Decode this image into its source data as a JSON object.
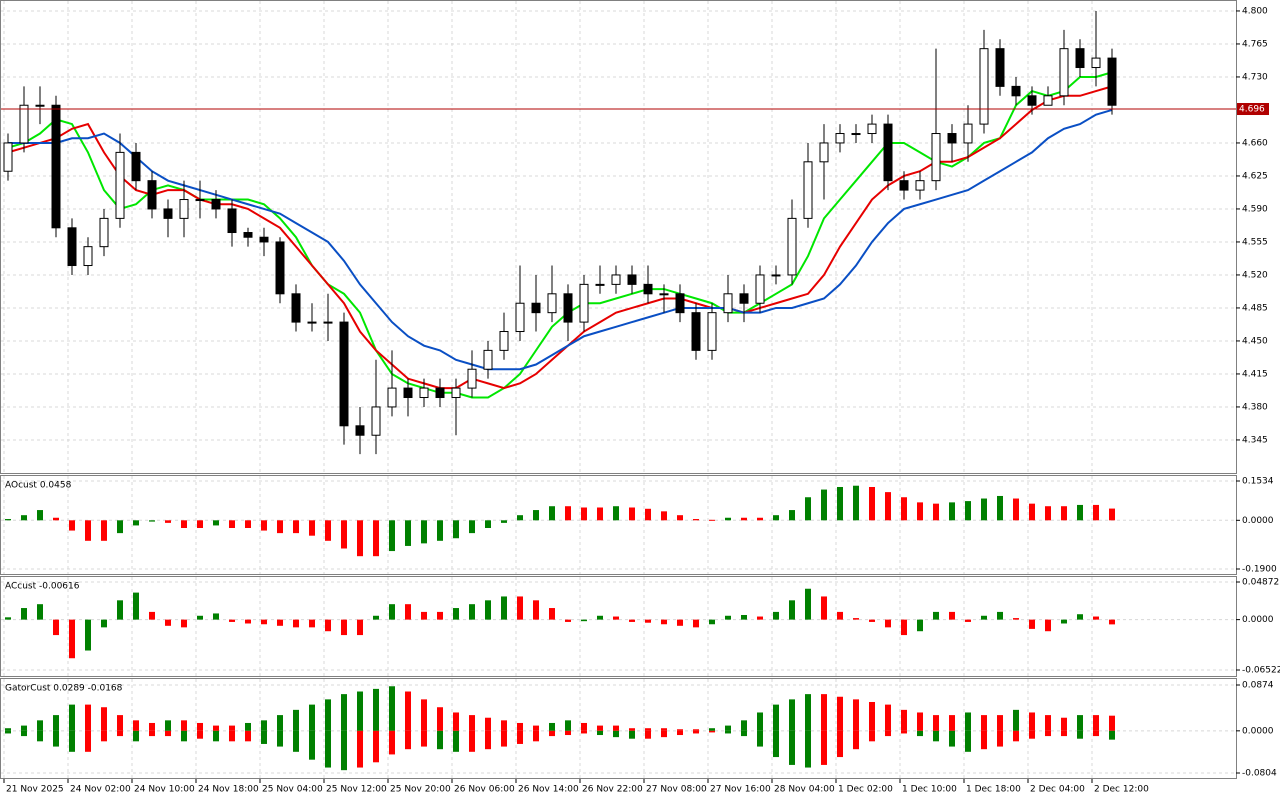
{
  "chart_data": [
    {
      "type": "candlestick",
      "categories": [
        "21 Nov 2025",
        null,
        null,
        null,
        "24 Nov 02:00",
        null,
        null,
        null,
        "24 Nov 10:00",
        null,
        null,
        null,
        "24 Nov 18:00",
        null,
        null,
        null,
        "25 Nov 04:00",
        null,
        null,
        null,
        "25 Nov 12:00",
        null,
        null,
        null,
        "25 Nov 20:00",
        null,
        null,
        null,
        "26 Nov 06:00",
        null,
        null,
        null,
        "26 Nov 14:00",
        null,
        null,
        null,
        "26 Nov 22:00",
        null,
        null,
        null,
        "27 Nov 08:00",
        null,
        null,
        null,
        "27 Nov 16:00",
        null,
        null,
        null,
        "28 Nov 04:00",
        null,
        null,
        null,
        "1 Dec 02:00",
        null,
        null,
        null,
        "1 Dec 10:00",
        null,
        null,
        null,
        "1 Dec 18:00",
        null,
        null,
        null,
        "2 Dec 04:00",
        null,
        null,
        null,
        "2 Dec 12:00",
        null
      ],
      "candles": [
        [
          4.63,
          4.67,
          4.62,
          4.66
        ],
        [
          4.66,
          4.72,
          4.65,
          4.7
        ],
        [
          4.7,
          4.72,
          4.68,
          4.7
        ],
        [
          4.7,
          4.71,
          4.56,
          4.57
        ],
        [
          4.57,
          4.58,
          4.52,
          4.53
        ],
        [
          4.53,
          4.56,
          4.52,
          4.55
        ],
        [
          4.55,
          4.59,
          4.54,
          4.58
        ],
        [
          4.58,
          4.67,
          4.57,
          4.65
        ],
        [
          4.65,
          4.66,
          4.61,
          4.62
        ],
        [
          4.62,
          4.63,
          4.58,
          4.59
        ],
        [
          4.59,
          4.6,
          4.56,
          4.58
        ],
        [
          4.58,
          4.62,
          4.56,
          4.6
        ],
        [
          4.6,
          4.62,
          4.58,
          4.6
        ],
        [
          4.6,
          4.61,
          4.58,
          4.59
        ],
        [
          4.59,
          4.6,
          4.55,
          4.565
        ],
        [
          4.565,
          4.57,
          4.55,
          4.56
        ],
        [
          4.56,
          4.57,
          4.54,
          4.555
        ],
        [
          4.555,
          4.56,
          4.49,
          4.5
        ],
        [
          4.5,
          4.51,
          4.46,
          4.47
        ],
        [
          4.47,
          4.49,
          4.46,
          4.47
        ],
        [
          4.47,
          4.5,
          4.45,
          4.47
        ],
        [
          4.47,
          4.48,
          4.34,
          4.36
        ],
        [
          4.36,
          4.38,
          4.33,
          4.35
        ],
        [
          4.35,
          4.43,
          4.33,
          4.38
        ],
        [
          4.38,
          4.44,
          4.37,
          4.4
        ],
        [
          4.4,
          4.41,
          4.37,
          4.39
        ],
        [
          4.39,
          4.41,
          4.38,
          4.4
        ],
        [
          4.4,
          4.41,
          4.38,
          4.39
        ],
        [
          4.39,
          4.41,
          4.35,
          4.4
        ],
        [
          4.4,
          4.44,
          4.39,
          4.42
        ],
        [
          4.42,
          4.45,
          4.41,
          4.44
        ],
        [
          4.44,
          4.48,
          4.43,
          4.46
        ],
        [
          4.46,
          4.53,
          4.45,
          4.49
        ],
        [
          4.49,
          4.52,
          4.46,
          4.48
        ],
        [
          4.48,
          4.53,
          4.47,
          4.5
        ],
        [
          4.5,
          4.51,
          4.45,
          4.47
        ],
        [
          4.47,
          4.52,
          4.46,
          4.51
        ],
        [
          4.51,
          4.53,
          4.5,
          4.51
        ],
        [
          4.51,
          4.53,
          4.5,
          4.52
        ],
        [
          4.52,
          4.53,
          4.5,
          4.51
        ],
        [
          4.51,
          4.53,
          4.49,
          4.5
        ],
        [
          4.5,
          4.51,
          4.48,
          4.5
        ],
        [
          4.5,
          4.51,
          4.47,
          4.48
        ],
        [
          4.48,
          4.49,
          4.43,
          4.44
        ],
        [
          4.44,
          4.49,
          4.43,
          4.48
        ],
        [
          4.48,
          4.52,
          4.47,
          4.5
        ],
        [
          4.5,
          4.51,
          4.47,
          4.49
        ],
        [
          4.49,
          4.53,
          4.48,
          4.52
        ],
        [
          4.52,
          4.53,
          4.51,
          4.52
        ],
        [
          4.52,
          4.6,
          4.51,
          4.58
        ],
        [
          4.58,
          4.66,
          4.57,
          4.64
        ],
        [
          4.64,
          4.68,
          4.6,
          4.66
        ],
        [
          4.66,
          4.68,
          4.65,
          4.67
        ],
        [
          4.67,
          4.68,
          4.66,
          4.67
        ],
        [
          4.67,
          4.69,
          4.66,
          4.68
        ],
        [
          4.68,
          4.69,
          4.61,
          4.62
        ],
        [
          4.62,
          4.63,
          4.6,
          4.61
        ],
        [
          4.61,
          4.63,
          4.6,
          4.62
        ],
        [
          4.62,
          4.76,
          4.61,
          4.67
        ],
        [
          4.67,
          4.68,
          4.64,
          4.66
        ],
        [
          4.66,
          4.7,
          4.64,
          4.68
        ],
        [
          4.68,
          4.78,
          4.67,
          4.76
        ],
        [
          4.76,
          4.77,
          4.71,
          4.72
        ],
        [
          4.72,
          4.73,
          4.7,
          4.71
        ],
        [
          4.71,
          4.72,
          4.69,
          4.7
        ],
        [
          4.7,
          4.72,
          4.7,
          4.71
        ],
        [
          4.71,
          4.78,
          4.7,
          4.76
        ],
        [
          4.76,
          4.77,
          4.73,
          4.74
        ],
        [
          4.74,
          4.8,
          4.72,
          4.75
        ],
        [
          4.75,
          4.76,
          4.69,
          4.7
        ]
      ],
      "series": [
        {
          "color": "#00e600",
          "values": [
            4.655,
            4.66,
            4.67,
            4.685,
            4.68,
            4.65,
            4.61,
            4.59,
            4.595,
            4.61,
            4.615,
            4.61,
            4.6,
            4.6,
            4.6,
            4.6,
            4.595,
            4.58,
            4.56,
            4.53,
            4.51,
            4.5,
            4.48,
            4.44,
            4.415,
            4.405,
            4.4,
            4.395,
            4.395,
            4.39,
            4.39,
            4.4,
            4.415,
            4.44,
            4.465,
            4.48,
            4.49,
            4.49,
            4.495,
            4.5,
            4.505,
            4.505,
            4.5,
            4.495,
            4.49,
            4.48,
            4.48,
            4.49,
            4.5,
            4.51,
            4.54,
            4.58,
            4.6,
            4.62,
            4.64,
            4.66,
            4.66,
            4.65,
            4.64,
            4.635,
            4.645,
            4.66,
            4.665,
            4.7,
            4.715,
            4.71,
            4.715,
            4.73,
            4.73,
            4.735
          ]
        },
        {
          "color": "#e60000",
          "values": [
            4.65,
            4.655,
            4.66,
            4.665,
            4.675,
            4.68,
            4.65,
            4.625,
            4.61,
            4.605,
            4.61,
            4.61,
            4.6,
            4.595,
            4.595,
            4.59,
            4.58,
            4.57,
            4.55,
            4.53,
            4.51,
            4.49,
            4.46,
            4.44,
            4.425,
            4.41,
            4.405,
            4.4,
            4.4,
            4.41,
            4.405,
            4.4,
            4.405,
            4.415,
            4.43,
            4.445,
            4.46,
            4.47,
            4.48,
            4.485,
            4.49,
            4.495,
            4.495,
            4.49,
            4.485,
            4.485,
            4.48,
            4.485,
            4.49,
            4.495,
            4.5,
            4.52,
            4.55,
            4.575,
            4.6,
            4.615,
            4.625,
            4.63,
            4.64,
            4.64,
            4.645,
            4.655,
            4.665,
            4.68,
            4.695,
            4.705,
            4.71,
            4.71,
            4.715,
            4.72
          ]
        },
        {
          "color": "#0a4fc4",
          "values": [
            4.66,
            4.66,
            4.66,
            4.66,
            4.665,
            4.665,
            4.67,
            4.66,
            4.645,
            4.63,
            4.62,
            4.615,
            4.61,
            4.605,
            4.6,
            4.595,
            4.59,
            4.585,
            4.575,
            4.565,
            4.555,
            4.535,
            4.51,
            4.49,
            4.47,
            4.455,
            4.445,
            4.44,
            4.43,
            4.425,
            4.42,
            4.42,
            4.42,
            4.425,
            4.435,
            4.445,
            4.455,
            4.46,
            4.465,
            4.47,
            4.475,
            4.48,
            4.485,
            4.485,
            4.485,
            4.485,
            4.48,
            4.48,
            4.485,
            4.485,
            4.49,
            4.495,
            4.51,
            4.53,
            4.555,
            4.575,
            4.59,
            4.595,
            4.6,
            4.605,
            4.61,
            4.62,
            4.63,
            4.64,
            4.65,
            4.665,
            4.675,
            4.68,
            4.69,
            4.695
          ]
        }
      ],
      "price_line": 4.696,
      "price_color": "#b00000",
      "ylim": [
        4.311,
        4.8095
      ],
      "yticks": [
        {
          "value": 4.8,
          "label": "4.800"
        },
        4.765,
        {
          "value": 4.73,
          "label": "4.730"
        },
        {
          "value": 4.66,
          "label": "4.660"
        },
        4.625,
        {
          "value": 4.59,
          "label": "4.590"
        },
        4.555,
        {
          "value": 4.52,
          "label": "4.520"
        },
        4.485,
        {
          "value": 4.45,
          "label": "4.450"
        },
        4.415,
        {
          "value": 4.38,
          "label": "4.380"
        },
        4.345
      ],
      "grid": true
    },
    {
      "type": "bar",
      "title": "AOcust 0.0458",
      "up_color": "#008000",
      "down_color": "#ff0000",
      "values": [
        0.005,
        0.02,
        0.04,
        0.01,
        -0.04,
        -0.08,
        -0.08,
        -0.05,
        -0.02,
        -0.005,
        -0.01,
        -0.03,
        -0.03,
        -0.02,
        -0.03,
        -0.03,
        -0.04,
        -0.05,
        -0.05,
        -0.06,
        -0.08,
        -0.11,
        -0.14,
        -0.14,
        -0.12,
        -0.1,
        -0.09,
        -0.08,
        -0.07,
        -0.05,
        -0.03,
        -0.01,
        0.02,
        0.04,
        0.055,
        0.055,
        0.05,
        0.05,
        0.055,
        0.05,
        0.045,
        0.035,
        0.02,
        0.005,
        0.002,
        0.01,
        0.01,
        0.01,
        0.02,
        0.04,
        0.09,
        0.12,
        0.13,
        0.135,
        0.13,
        0.11,
        0.09,
        0.07,
        0.065,
        0.07,
        0.075,
        0.085,
        0.095,
        0.085,
        0.065,
        0.055,
        0.055,
        0.06,
        0.06,
        0.0458
      ],
      "ylim": [
        -0.19,
        0.1534
      ],
      "yticks": [
        0.1534,
        {
          "value": 0,
          "label": "0.0000"
        },
        {
          "value": -0.19,
          "label": "-0.1900"
        }
      ],
      "grid": true
    },
    {
      "type": "bar",
      "title": "ACcust -0.00616",
      "up_color": "#008000",
      "down_color": "#ff0000",
      "values": [
        0.003,
        0.015,
        0.02,
        -0.02,
        -0.05,
        -0.04,
        -0.01,
        0.025,
        0.035,
        0.01,
        -0.008,
        -0.01,
        0.005,
        0.008,
        -0.003,
        -0.005,
        -0.006,
        -0.008,
        -0.01,
        -0.01,
        -0.015,
        -0.02,
        -0.02,
        0.005,
        0.02,
        0.02,
        0.01,
        0.01,
        0.015,
        0.02,
        0.025,
        0.03,
        0.03,
        0.025,
        0.015,
        -0.003,
        -0.002,
        0.005,
        0.004,
        -0.003,
        -0.004,
        -0.006,
        -0.008,
        -0.01,
        -0.006,
        0.005,
        0.006,
        0.004,
        0.01,
        0.025,
        0.04,
        0.03,
        0.01,
        0.002,
        -0.003,
        -0.01,
        -0.02,
        -0.015,
        0.01,
        0.01,
        -0.003,
        0.005,
        0.01,
        0.002,
        -0.012,
        -0.015,
        -0.005,
        0.007,
        0.004,
        -0.00616
      ],
      "ylim": [
        -0.06522,
        0.04872
      ],
      "yticks": [
        0.04872,
        {
          "value": 0,
          "label": "0.0000"
        },
        -0.06522
      ],
      "grid": true
    },
    {
      "type": "gator",
      "title": "GatorCust 0.0289 -0.0168",
      "up_color": "#008000",
      "down_color": "#ff0000",
      "series": [
        {
          "values": [
            0.005,
            0.01,
            0.02,
            0.03,
            0.05,
            0.05,
            0.045,
            0.03,
            0.02,
            0.015,
            0.02,
            0.02,
            0.015,
            0.01,
            0.01,
            0.015,
            0.02,
            0.03,
            0.04,
            0.05,
            0.06,
            0.07,
            0.075,
            0.08,
            0.085,
            0.075,
            0.06,
            0.045,
            0.035,
            0.03,
            0.025,
            0.02,
            0.015,
            0.01,
            0.015,
            0.02,
            0.015,
            0.01,
            0.01,
            0.005,
            0.005,
            0.005,
            0.003,
            0.003,
            0.005,
            0.01,
            0.02,
            0.035,
            0.05,
            0.06,
            0.07,
            0.07,
            0.065,
            0.06,
            0.055,
            0.05,
            0.04,
            0.035,
            0.03,
            0.03,
            0.035,
            0.03,
            0.03,
            0.04,
            0.035,
            0.03,
            0.025,
            0.03,
            0.03,
            0.0289
          ]
        },
        {
          "values": [
            -0.005,
            -0.01,
            -0.02,
            -0.03,
            -0.04,
            -0.04,
            -0.02,
            -0.01,
            -0.02,
            -0.01,
            -0.01,
            -0.02,
            -0.015,
            -0.02,
            -0.02,
            -0.02,
            -0.025,
            -0.03,
            -0.04,
            -0.055,
            -0.07,
            -0.075,
            -0.07,
            -0.06,
            -0.045,
            -0.035,
            -0.03,
            -0.035,
            -0.04,
            -0.04,
            -0.035,
            -0.03,
            -0.025,
            -0.02,
            -0.01,
            -0.008,
            -0.005,
            -0.008,
            -0.012,
            -0.015,
            -0.015,
            -0.012,
            -0.008,
            -0.005,
            -0.003,
            -0.005,
            -0.01,
            -0.03,
            -0.05,
            -0.065,
            -0.07,
            -0.065,
            -0.05,
            -0.035,
            -0.02,
            -0.01,
            -0.005,
            -0.01,
            -0.02,
            -0.03,
            -0.04,
            -0.035,
            -0.03,
            -0.02,
            -0.015,
            -0.01,
            -0.01,
            -0.015,
            -0.01,
            -0.0168
          ]
        }
      ],
      "ylim": [
        -0.0804,
        0.0874
      ],
      "yticks": [
        0.0874,
        {
          "value": 0,
          "label": "0.0000"
        },
        -0.0804
      ],
      "grid": true
    }
  ]
}
